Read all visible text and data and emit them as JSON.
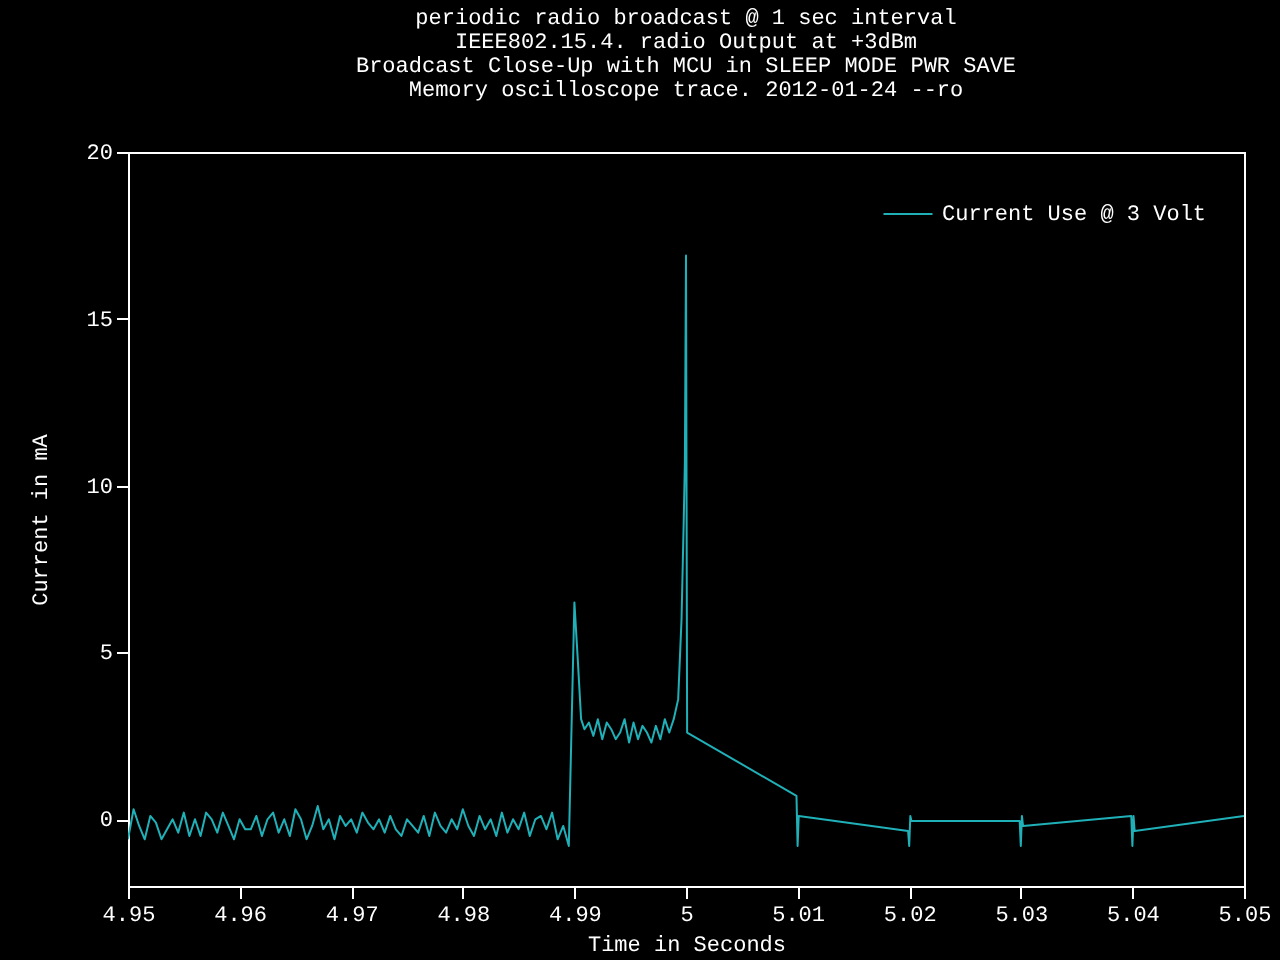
{
  "chart_data": {
    "type": "line",
    "title": "periodic radio broadcast @ 1 sec interval",
    "subtitle": "IEEE802.15.4. radio Output at +3dBm\nBroadcast Close-Up with MCU in SLEEP MODE PWR SAVE\nMemory oscilloscope trace. 2012-01-24 --ro",
    "xlabel": "Time in Seconds",
    "ylabel": "Current in mA",
    "xlim": [
      4.95,
      5.05
    ],
    "xticks": [
      4.95,
      4.96,
      4.97,
      4.98,
      4.99,
      5,
      5.01,
      5.02,
      5.03,
      5.04,
      5.05
    ],
    "ylim": [
      -2,
      20
    ],
    "yticks": [
      0,
      5,
      10,
      15,
      20
    ],
    "grid": false,
    "legend": "top right",
    "line_style": "solid",
    "marker": "none",
    "series": [
      {
        "name": "Current Use @ 3 Volt",
        "color": "#20b0b8",
        "x": [
          4.95,
          4.9505,
          4.951,
          4.9515,
          4.952,
          4.9525,
          4.953,
          4.9535,
          4.954,
          4.9545,
          4.955,
          4.9555,
          4.956,
          4.9565,
          4.957,
          4.9575,
          4.958,
          4.9585,
          4.959,
          4.9595,
          4.96,
          4.9605,
          4.961,
          4.9615,
          4.962,
          4.9625,
          4.963,
          4.9635,
          4.964,
          4.9645,
          4.965,
          4.9655,
          4.966,
          4.9665,
          4.967,
          4.9675,
          4.968,
          4.9685,
          4.969,
          4.9695,
          4.97,
          4.9705,
          4.971,
          4.9715,
          4.972,
          4.9725,
          4.973,
          4.9735,
          4.974,
          4.9745,
          4.975,
          4.9755,
          4.976,
          4.9765,
          4.977,
          4.9775,
          4.978,
          4.9785,
          4.979,
          4.9795,
          4.98,
          4.9805,
          4.981,
          4.9815,
          4.982,
          4.9825,
          4.983,
          4.9835,
          4.984,
          4.9845,
          4.985,
          4.9855,
          4.986,
          4.9865,
          4.987,
          4.9875,
          4.988,
          4.9885,
          4.989,
          4.9895,
          4.99,
          4.9903,
          4.9906,
          4.9909,
          4.9913,
          4.9917,
          4.9921,
          4.9925,
          4.9929,
          4.9933,
          4.9937,
          4.9941,
          4.9945,
          4.9949,
          4.9953,
          4.9957,
          4.9961,
          4.9965,
          4.9969,
          4.9973,
          4.9977,
          4.9981,
          4.9985,
          4.9989,
          4.9993,
          4.9996,
          4.9998,
          4.9999,
          5.0,
          5.0001,
          5.0099,
          5.01,
          5.0101,
          5.0199,
          5.02,
          5.0201,
          5.0202,
          5.0299,
          5.03,
          5.0301,
          5.0302,
          5.0399,
          5.04,
          5.0401,
          5.0402,
          5.05
        ],
        "values": [
          -0.6,
          0.3,
          -0.2,
          -0.6,
          0.1,
          -0.1,
          -0.6,
          -0.3,
          0.0,
          -0.4,
          0.2,
          -0.5,
          0.0,
          -0.5,
          0.2,
          0.0,
          -0.4,
          0.2,
          -0.2,
          -0.6,
          0.0,
          -0.3,
          -0.3,
          0.1,
          -0.5,
          0.0,
          0.2,
          -0.4,
          0.0,
          -0.5,
          0.3,
          0.0,
          -0.6,
          -0.2,
          0.4,
          -0.3,
          0.0,
          -0.6,
          0.1,
          -0.2,
          0.0,
          -0.4,
          0.2,
          -0.1,
          -0.3,
          0.0,
          -0.4,
          0.1,
          -0.3,
          -0.5,
          0.0,
          -0.2,
          -0.4,
          0.1,
          -0.5,
          0.2,
          -0.2,
          -0.4,
          0.0,
          -0.3,
          0.3,
          -0.2,
          -0.5,
          0.1,
          -0.3,
          0.0,
          -0.5,
          0.2,
          -0.4,
          0.0,
          -0.3,
          0.2,
          -0.5,
          0.0,
          0.1,
          -0.3,
          0.2,
          -0.6,
          -0.2,
          -0.8,
          6.5,
          4.8,
          3.0,
          2.7,
          2.9,
          2.5,
          3.0,
          2.4,
          2.9,
          2.7,
          2.4,
          2.6,
          3.0,
          2.3,
          2.9,
          2.4,
          2.8,
          2.6,
          2.3,
          2.8,
          2.4,
          3.0,
          2.6,
          3.0,
          3.6,
          6.0,
          9.0,
          10.7,
          16.9,
          2.6,
          0.7,
          -0.8,
          0.1,
          -0.35,
          -0.8,
          0.1,
          -0.05,
          -0.05,
          -0.8,
          0.1,
          -0.2,
          0.1,
          -0.8,
          0.1,
          -0.35,
          0.1
        ]
      }
    ]
  }
}
